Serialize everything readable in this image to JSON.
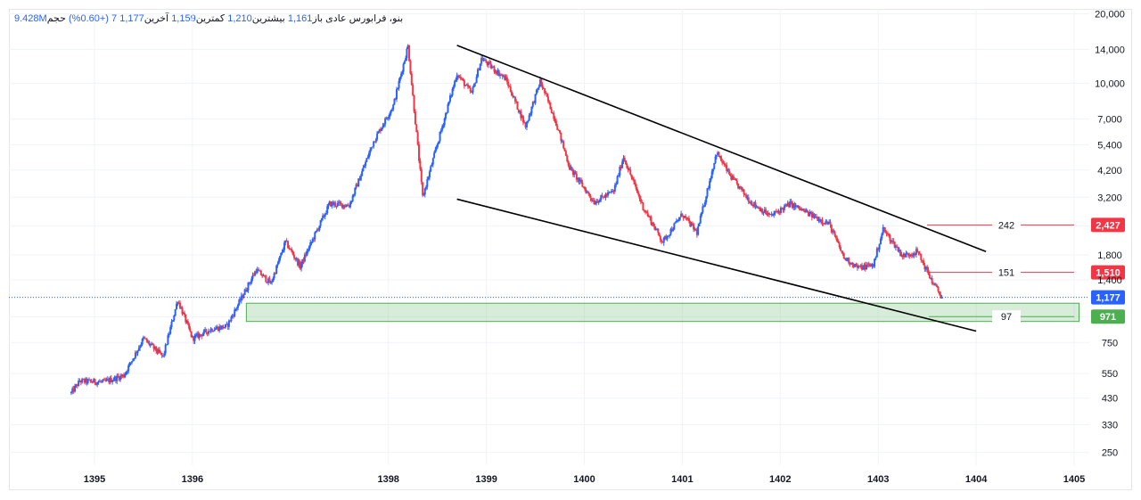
{
  "legend": {
    "symbol": "بنو، فرابورس عادی",
    "open_label": "باز",
    "open_value": "1,161",
    "high_label": "بیشترین",
    "high_value": "1,210",
    "low_label": "کمترین",
    "low_value": "1,159",
    "close_label": "آخرین",
    "close_value": "1,177",
    "change": "7 (+0.60%)",
    "volume_label": "حجم",
    "volume_value": "9.428M"
  },
  "chart_data": {
    "type": "candlestick",
    "y_scale": "log",
    "ylim": [
      220,
      21000
    ],
    "xlim": [
      1394.3,
      1405.05
    ],
    "y_ticks": [
      250,
      330,
      430,
      550,
      750,
      970,
      1400,
      1800,
      2400,
      3200,
      4200,
      5400,
      7000,
      10000,
      14000,
      20000
    ],
    "y_tick_labels": [
      "250",
      "330",
      "430",
      "550",
      "750",
      "",
      "1,400",
      "1,800",
      "",
      "3,200",
      "4,200",
      "5,400",
      "7,000",
      "10,000",
      "14,000",
      "20,000"
    ],
    "x_ticks": [
      1395,
      1396,
      1398,
      1399,
      1400,
      1401,
      1402,
      1403,
      1404,
      1405
    ],
    "x_tick_labels": [
      "1395",
      "1396",
      "1398",
      "1399",
      "1400",
      "1401",
      "1402",
      "1403",
      "1404",
      "1405"
    ],
    "colors": {
      "up": "#2962ff",
      "down": "#f23645",
      "trendline": "#000000",
      "zone": "#4caf50"
    },
    "price_path": [
      [
        1394.75,
        445
      ],
      [
        1394.85,
        510
      ],
      [
        1395.1,
        505
      ],
      [
        1395.3,
        540
      ],
      [
        1395.5,
        780
      ],
      [
        1395.7,
        650
      ],
      [
        1395.85,
        1150
      ],
      [
        1396.0,
        780
      ],
      [
        1396.2,
        860
      ],
      [
        1396.35,
        880
      ],
      [
        1396.5,
        1170
      ],
      [
        1396.65,
        1550
      ],
      [
        1396.8,
        1350
      ],
      [
        1396.95,
        2050
      ],
      [
        1397.1,
        1600
      ],
      [
        1397.25,
        2200
      ],
      [
        1397.4,
        3000
      ],
      [
        1397.6,
        2950
      ],
      [
        1397.85,
        5600
      ],
      [
        1398.05,
        8000
      ],
      [
        1398.2,
        14500
      ],
      [
        1398.35,
        3200
      ],
      [
        1398.55,
        6500
      ],
      [
        1398.7,
        11000
      ],
      [
        1398.85,
        9000
      ],
      [
        1398.95,
        12800
      ],
      [
        1399.2,
        10400
      ],
      [
        1399.4,
        6500
      ],
      [
        1399.55,
        10200
      ],
      [
        1399.7,
        7000
      ],
      [
        1399.85,
        4300
      ],
      [
        1400.1,
        3050
      ],
      [
        1400.3,
        3400
      ],
      [
        1400.4,
        4800
      ],
      [
        1400.6,
        2900
      ],
      [
        1400.8,
        2050
      ],
      [
        1401.0,
        2700
      ],
      [
        1401.15,
        2250
      ],
      [
        1401.35,
        5000
      ],
      [
        1401.5,
        3900
      ],
      [
        1401.7,
        3050
      ],
      [
        1401.9,
        2650
      ],
      [
        1402.1,
        3000
      ],
      [
        1402.3,
        2700
      ],
      [
        1402.5,
        2450
      ],
      [
        1402.65,
        1750
      ],
      [
        1402.8,
        1580
      ],
      [
        1402.95,
        1630
      ],
      [
        1403.05,
        2330
      ],
      [
        1403.25,
        1780
      ],
      [
        1403.4,
        1860
      ],
      [
        1403.55,
        1380
      ],
      [
        1403.65,
        1177
      ]
    ],
    "trendlines": [
      {
        "name": "upper",
        "points": [
          [
            1398.7,
            14600
          ],
          [
            1404.1,
            1860
          ]
        ]
      },
      {
        "name": "lower",
        "points": [
          [
            1398.7,
            3140
          ],
          [
            1404.0,
            840
          ]
        ]
      }
    ],
    "support_zone": {
      "x_start": 1396.55,
      "x_end": 1405.05,
      "y_top": 1110,
      "y_bottom": 925
    },
    "annotations": [
      {
        "label": "242",
        "price": 2427,
        "badge": "2,427",
        "color": "#f23645"
      },
      {
        "label": "151",
        "price": 1510,
        "badge": "1,510",
        "color": "#f23645"
      },
      {
        "label": "97",
        "price": 971,
        "badge": "971",
        "color": "#4caf50"
      }
    ],
    "last_price": {
      "price": 1177,
      "badge": "1,177",
      "color": "#2962ff"
    }
  }
}
